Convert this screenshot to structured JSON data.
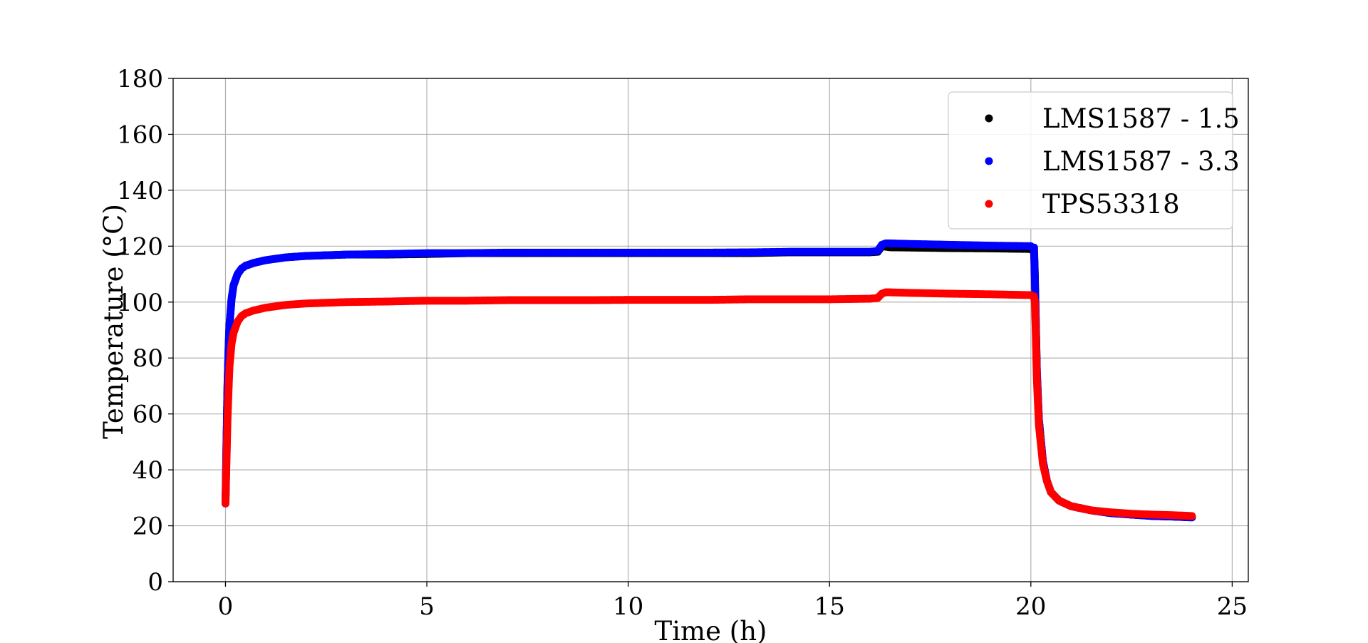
{
  "chart_data": {
    "type": "scatter",
    "title": "",
    "xlabel": "Time (h)",
    "ylabel": "Temperature (°C)",
    "xlim": [
      -1.3,
      25.4
    ],
    "ylim": [
      0,
      180
    ],
    "xticks": [
      0,
      5,
      10,
      15,
      20,
      25
    ],
    "yticks": [
      0,
      20,
      40,
      60,
      80,
      100,
      120,
      140,
      160,
      180
    ],
    "grid": true,
    "legend_position": "top-right",
    "series": [
      {
        "name": "LMS1587 - 1.5",
        "color": "#000000",
        "x": [
          0,
          0.02,
          0.05,
          0.08,
          0.1,
          0.15,
          0.2,
          0.3,
          0.4,
          0.5,
          0.7,
          1.0,
          1.5,
          2.0,
          3.0,
          4.0,
          5.0,
          6.0,
          7.0,
          8.0,
          9.0,
          10.0,
          11.0,
          12.0,
          13.0,
          14.0,
          15.0,
          16.0,
          16.2,
          16.3,
          16.4,
          16.5,
          17.0,
          18.0,
          19.0,
          20.0,
          20.08,
          20.1,
          20.12,
          20.15,
          20.2,
          20.3,
          20.4,
          20.5,
          20.7,
          21.0,
          21.5,
          22.0,
          22.5,
          23.0,
          23.5,
          24.0
        ],
        "y": [
          28,
          45,
          70,
          85,
          92,
          101,
          106,
          110,
          112,
          113,
          114,
          115,
          116,
          116.5,
          117,
          117,
          117.2,
          117.5,
          117.5,
          117.5,
          117.5,
          117.5,
          117.5,
          117.5,
          117.5,
          117.8,
          117.8,
          117.8,
          118,
          120,
          119.8,
          119.6,
          119.5,
          119.3,
          119.2,
          119,
          118,
          110,
          95,
          75,
          58,
          43,
          36,
          32,
          29,
          27,
          25.5,
          24.5,
          24,
          23.5,
          23.3,
          23
        ]
      },
      {
        "name": "LMS1587 - 3.3",
        "color": "#0000ff",
        "x": [
          0,
          0.02,
          0.05,
          0.08,
          0.1,
          0.15,
          0.2,
          0.3,
          0.4,
          0.5,
          0.7,
          1.0,
          1.5,
          2.0,
          3.0,
          4.0,
          5.0,
          6.0,
          7.0,
          8.0,
          9.0,
          10.0,
          11.0,
          12.0,
          13.0,
          14.0,
          15.0,
          16.0,
          16.2,
          16.3,
          16.4,
          16.5,
          17.0,
          18.0,
          19.0,
          20.0,
          20.08,
          20.1,
          20.12,
          20.15,
          20.2,
          20.3,
          20.4,
          20.5,
          20.7,
          21.0,
          21.5,
          22.0,
          22.5,
          23.0,
          23.5,
          24.0
        ],
        "y": [
          28,
          45,
          70,
          85,
          92,
          101,
          106,
          110,
          112,
          113,
          114,
          115,
          116,
          116.5,
          117,
          117.2,
          117.5,
          117.5,
          117.7,
          117.7,
          117.7,
          117.7,
          117.7,
          117.7,
          117.8,
          118,
          118,
          118,
          118.3,
          120.5,
          121,
          121,
          120.8,
          120.5,
          120.2,
          120,
          119.5,
          107,
          95,
          75,
          58,
          43,
          36,
          32,
          29,
          27,
          25.5,
          24.5,
          24,
          23.5,
          23.3,
          23
        ]
      },
      {
        "name": "TPS53318",
        "color": "#ff0000",
        "x": [
          0,
          0.02,
          0.05,
          0.08,
          0.1,
          0.15,
          0.2,
          0.3,
          0.4,
          0.5,
          0.7,
          1.0,
          1.5,
          2.0,
          3.0,
          4.0,
          5.0,
          6.0,
          7.0,
          8.0,
          9.0,
          10.0,
          11.0,
          12.0,
          13.0,
          14.0,
          15.0,
          16.0,
          16.2,
          16.3,
          16.4,
          16.5,
          17.0,
          18.0,
          19.0,
          20.0,
          20.08,
          20.1,
          20.12,
          20.15,
          20.2,
          20.3,
          20.4,
          20.5,
          20.7,
          21.0,
          21.5,
          22.0,
          22.5,
          23.0,
          23.5,
          24.0
        ],
        "y": [
          28,
          40,
          58,
          70,
          77,
          85,
          89,
          93,
          95,
          96,
          97,
          98,
          99,
          99.5,
          100,
          100.2,
          100.5,
          100.5,
          100.7,
          100.7,
          100.7,
          100.8,
          100.8,
          100.8,
          101,
          101,
          101,
          101.2,
          101.5,
          103,
          103.5,
          103.5,
          103.3,
          103,
          102.8,
          102.5,
          102,
          100,
          90,
          72,
          56,
          42,
          36,
          32,
          29,
          27,
          25.5,
          24.8,
          24.3,
          24,
          23.8,
          23.5
        ]
      }
    ]
  }
}
